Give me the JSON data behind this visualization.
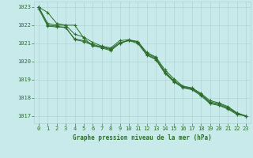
{
  "title": "Graphe pression niveau de la mer (hPa)",
  "background_color": "#c8eaea",
  "grid_color": "#b0d4d4",
  "line_color": "#2d6e2d",
  "xlim": [
    -0.5,
    23.5
  ],
  "ylim": [
    1016.6,
    1023.3
  ],
  "yticks": [
    1017,
    1018,
    1019,
    1020,
    1021,
    1022,
    1023
  ],
  "xticks": [
    0,
    1,
    2,
    3,
    4,
    5,
    6,
    7,
    8,
    9,
    10,
    11,
    12,
    13,
    14,
    15,
    16,
    17,
    18,
    19,
    20,
    21,
    22,
    23
  ],
  "series": [
    [
      1023.0,
      1022.7,
      1022.1,
      1022.0,
      1022.0,
      1021.3,
      1020.85,
      1020.8,
      1020.7,
      1021.05,
      1021.15,
      1021.1,
      1020.5,
      1020.25,
      1019.55,
      1019.05,
      1018.65,
      1018.55,
      1018.25,
      1017.85,
      1017.72,
      1017.52,
      1017.18,
      1017.0
    ],
    [
      1023.0,
      1022.1,
      1022.0,
      1022.0,
      1021.5,
      1021.35,
      1021.05,
      1020.85,
      1020.75,
      1021.15,
      1021.2,
      1021.1,
      1020.45,
      1020.2,
      1019.45,
      1018.95,
      1018.62,
      1018.52,
      1018.2,
      1017.78,
      1017.67,
      1017.47,
      1017.15,
      1017.0
    ],
    [
      1023.0,
      1022.0,
      1021.95,
      1021.85,
      1021.25,
      1021.15,
      1020.95,
      1020.8,
      1020.65,
      1021.0,
      1021.18,
      1021.05,
      1020.38,
      1020.15,
      1019.38,
      1018.92,
      1018.58,
      1018.48,
      1018.18,
      1017.72,
      1017.62,
      1017.42,
      1017.12,
      1017.0
    ],
    [
      1022.9,
      1021.95,
      1021.9,
      1021.9,
      1021.2,
      1021.1,
      1020.9,
      1020.75,
      1020.6,
      1021.0,
      1021.15,
      1021.0,
      1020.35,
      1020.1,
      1019.35,
      1018.88,
      1018.55,
      1018.45,
      1018.12,
      1017.68,
      1017.58,
      1017.38,
      1017.08,
      1017.0
    ]
  ]
}
